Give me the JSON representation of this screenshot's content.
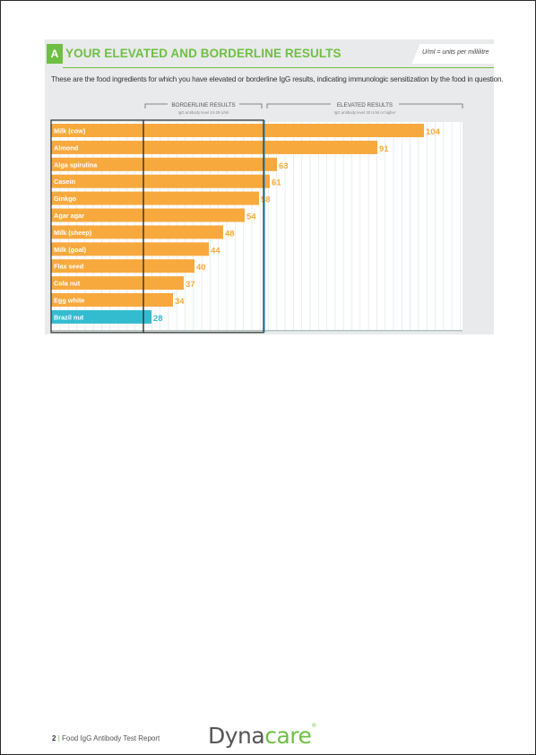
{
  "section": {
    "badge": "A",
    "title": "YOUR ELEVATED AND BORDERLINE RESULTS",
    "units_note": "U/ml = units per millilitre",
    "intro": "These are the food ingredients for which you have elevated or borderline IgG results, indicating immunologic sensitization by the food in question."
  },
  "chart_data": {
    "type": "bar",
    "orientation": "horizontal",
    "categories": [
      "Milk (cow)",
      "Almond",
      "Alga spirulina",
      "Casein",
      "Ginkgo",
      "Agar agar",
      "Milk (sheep)",
      "Milk (goal)",
      "Flax seed",
      "Cola nut",
      "Egg white",
      "Brazil nut"
    ],
    "values": [
      104,
      91,
      63,
      61,
      58,
      54,
      48,
      44,
      40,
      37,
      34,
      28
    ],
    "groups": [
      {
        "label": "BORDERLINE RESULTS",
        "sublabel": "IgG antibody level 24-29 U/ml",
        "range": [
          24,
          29
        ]
      },
      {
        "label": "ELEVATED RESULTS",
        "sublabel": "IgG antibody level 30 U/ml or higher",
        "range": [
          30,
          null
        ]
      }
    ],
    "colors": {
      "elevated": "#f7a93e",
      "borderline": "#33bccf",
      "grid": "#ffffff",
      "boundary": "#3a8fbd",
      "frame": "#2b2b2b"
    }
  },
  "footer": {
    "page_number": "2",
    "separator": "|",
    "report_title": "Food IgG Antibody Test Report",
    "logo_part1": "Dyna",
    "logo_part2": "care",
    "logo_mark": "®"
  }
}
